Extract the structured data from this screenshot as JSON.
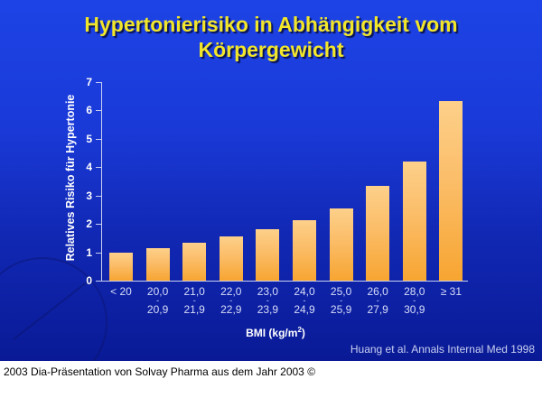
{
  "slide": {
    "title_line1": "Hypertonierisiko in Abhängigkeit vom",
    "title_line2": "Körpergewicht",
    "source": "Huang et al. Annals Internal Med 1998",
    "footer": "2003 Dia-Präsentation von Solvay Pharma aus dem Jahr 2003 ©",
    "colors": {
      "background": "#1a3ad8",
      "title": "#f2e62a",
      "bar_top": "#fdd08a",
      "bar_bottom": "#f7a531"
    }
  },
  "chart_data": {
    "type": "bar",
    "title": "Hypertonierisiko in Abhängigkeit vom Körpergewicht",
    "xlabel": "BMI (kg/m²)",
    "ylabel": "Relatives Risiko für Hypertonie",
    "ylim": [
      0,
      7
    ],
    "yticks": [
      "0",
      "1",
      "2",
      "3",
      "4",
      "5",
      "6",
      "7"
    ],
    "grid": false,
    "categories": [
      "< 20",
      "20,0 - 20,9",
      "21,0 - 21,9",
      "22,0 - 22,9",
      "23,0 - 23,9",
      "24,0 - 24,9",
      "25,0 - 25,9",
      "26,0 - 27,9",
      "28,0 - 30,9",
      "≥ 31"
    ],
    "category_lines": [
      [
        "< 20",
        ""
      ],
      [
        "20,0",
        "20,9"
      ],
      [
        "21,0",
        "21,9"
      ],
      [
        "22,0",
        "22,9"
      ],
      [
        "23,0",
        "23,9"
      ],
      [
        "24,0",
        "24,9"
      ],
      [
        "25,0",
        "25,9"
      ],
      [
        "26,0",
        "27,9"
      ],
      [
        "28,0",
        "30,9"
      ],
      [
        "≥ 31",
        ""
      ]
    ],
    "values": [
      1.0,
      1.15,
      1.35,
      1.57,
      1.8,
      2.13,
      2.53,
      3.33,
      4.2,
      6.33
    ],
    "annotations": [
      "Huang et al. Annals Internal Med 1998"
    ]
  }
}
